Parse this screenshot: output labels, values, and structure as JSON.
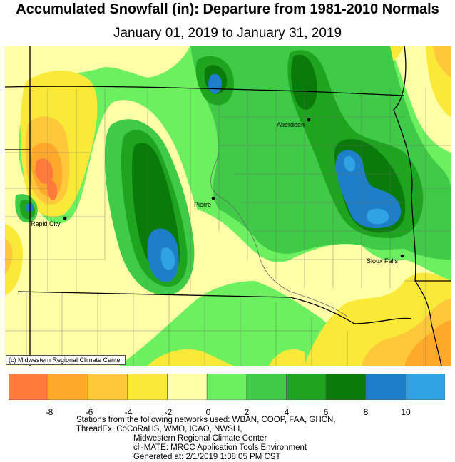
{
  "header": {
    "title": "Accumulated Snowfall (in): Departure from 1981-2010 Normals",
    "subtitle": "January 01, 2019 to January 31, 2019"
  },
  "map": {
    "copyright": "(c) Midwestern Regional Climate Center",
    "cities": [
      {
        "name": "Aberdeen",
        "id": "aberdeen"
      },
      {
        "name": "Pierre",
        "id": "pierre"
      },
      {
        "name": "Rapid City",
        "id": "rapid-city"
      },
      {
        "name": "Sioux Falls",
        "id": "sioux-falls"
      }
    ]
  },
  "legend": {
    "ticks": [
      "-8",
      "-6",
      "-4",
      "-2",
      "0",
      "2",
      "4",
      "6",
      "8",
      "10"
    ],
    "colors": [
      "#ff7a3c",
      "#ffa82a",
      "#ffc73a",
      "#fbe93a",
      "#ffffa8",
      "#6cf060",
      "#3fca48",
      "#1fa420",
      "#0a7a0a",
      "#1e7fc8",
      "#2fa3e4"
    ]
  },
  "footer": {
    "line1": "Stations from the following networks used: WBAN, COOP, FAA, GHCN,",
    "line2": "ThreadEx, CoCoRaHS, WMO, ICAO, NWSLI,",
    "line3": "Midwestern Regional Climate Center",
    "line4": "cli-MATE: MRCC Application Tools Environment",
    "line5": "Generated at: 2/1/2019 1:38:05 PM CST"
  }
}
